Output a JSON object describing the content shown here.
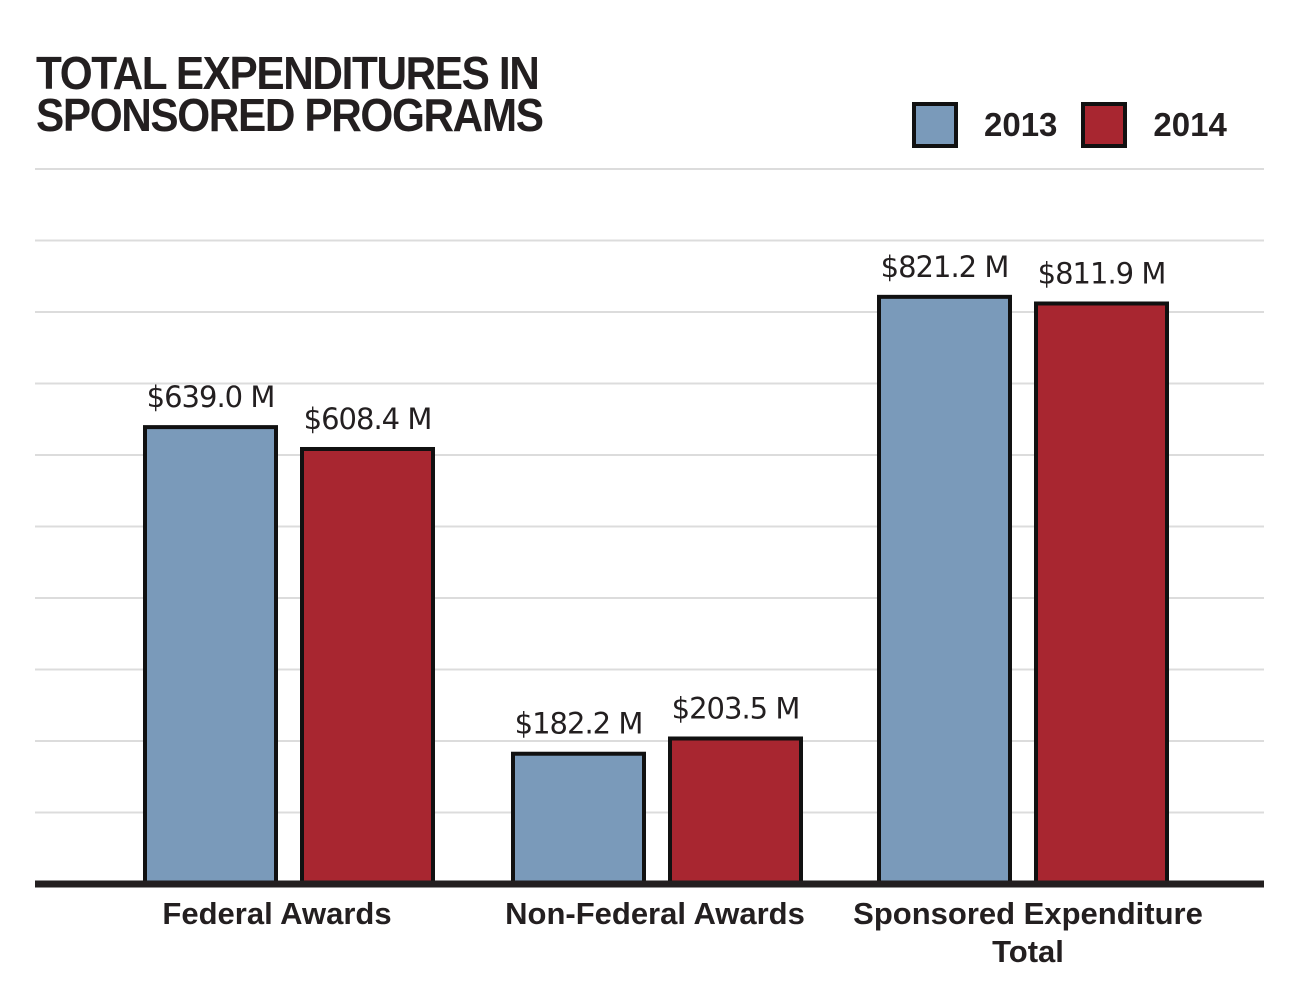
{
  "chart_data": {
    "type": "bar",
    "title": "TOTAL EXPENDITURES IN SPONSORED PROGRAMS",
    "title_lines": [
      "TOTAL EXPENDITURES IN",
      "SPONSORED PROGRAMS"
    ],
    "categories": [
      "Federal Awards",
      "Non-Federal Awards",
      "Sponsored Expenditure Total"
    ],
    "category_label_lines": [
      [
        "Federal Awards"
      ],
      [
        "Non-Federal Awards"
      ],
      [
        "Sponsored Expenditure",
        "Total"
      ]
    ],
    "series": [
      {
        "name": "2013",
        "color": "#7a9aba",
        "values": [
          639.0,
          182.2,
          821.2
        ],
        "labels": [
          "$639.0 M",
          "$182.2 M",
          "$821.2 M"
        ]
      },
      {
        "name": "2014",
        "color": "#a82630",
        "values": [
          608.4,
          203.5,
          811.9
        ],
        "labels": [
          "$608.4 M",
          "$203.5 M",
          "$811.9 M"
        ]
      }
    ],
    "unit": "$ M",
    "xlabel": "",
    "ylabel": "",
    "ylim": [
      0,
      1000
    ],
    "gridline_step": 100,
    "grid": true,
    "y_tick_labels_shown": false,
    "legend_position": "top-right"
  }
}
